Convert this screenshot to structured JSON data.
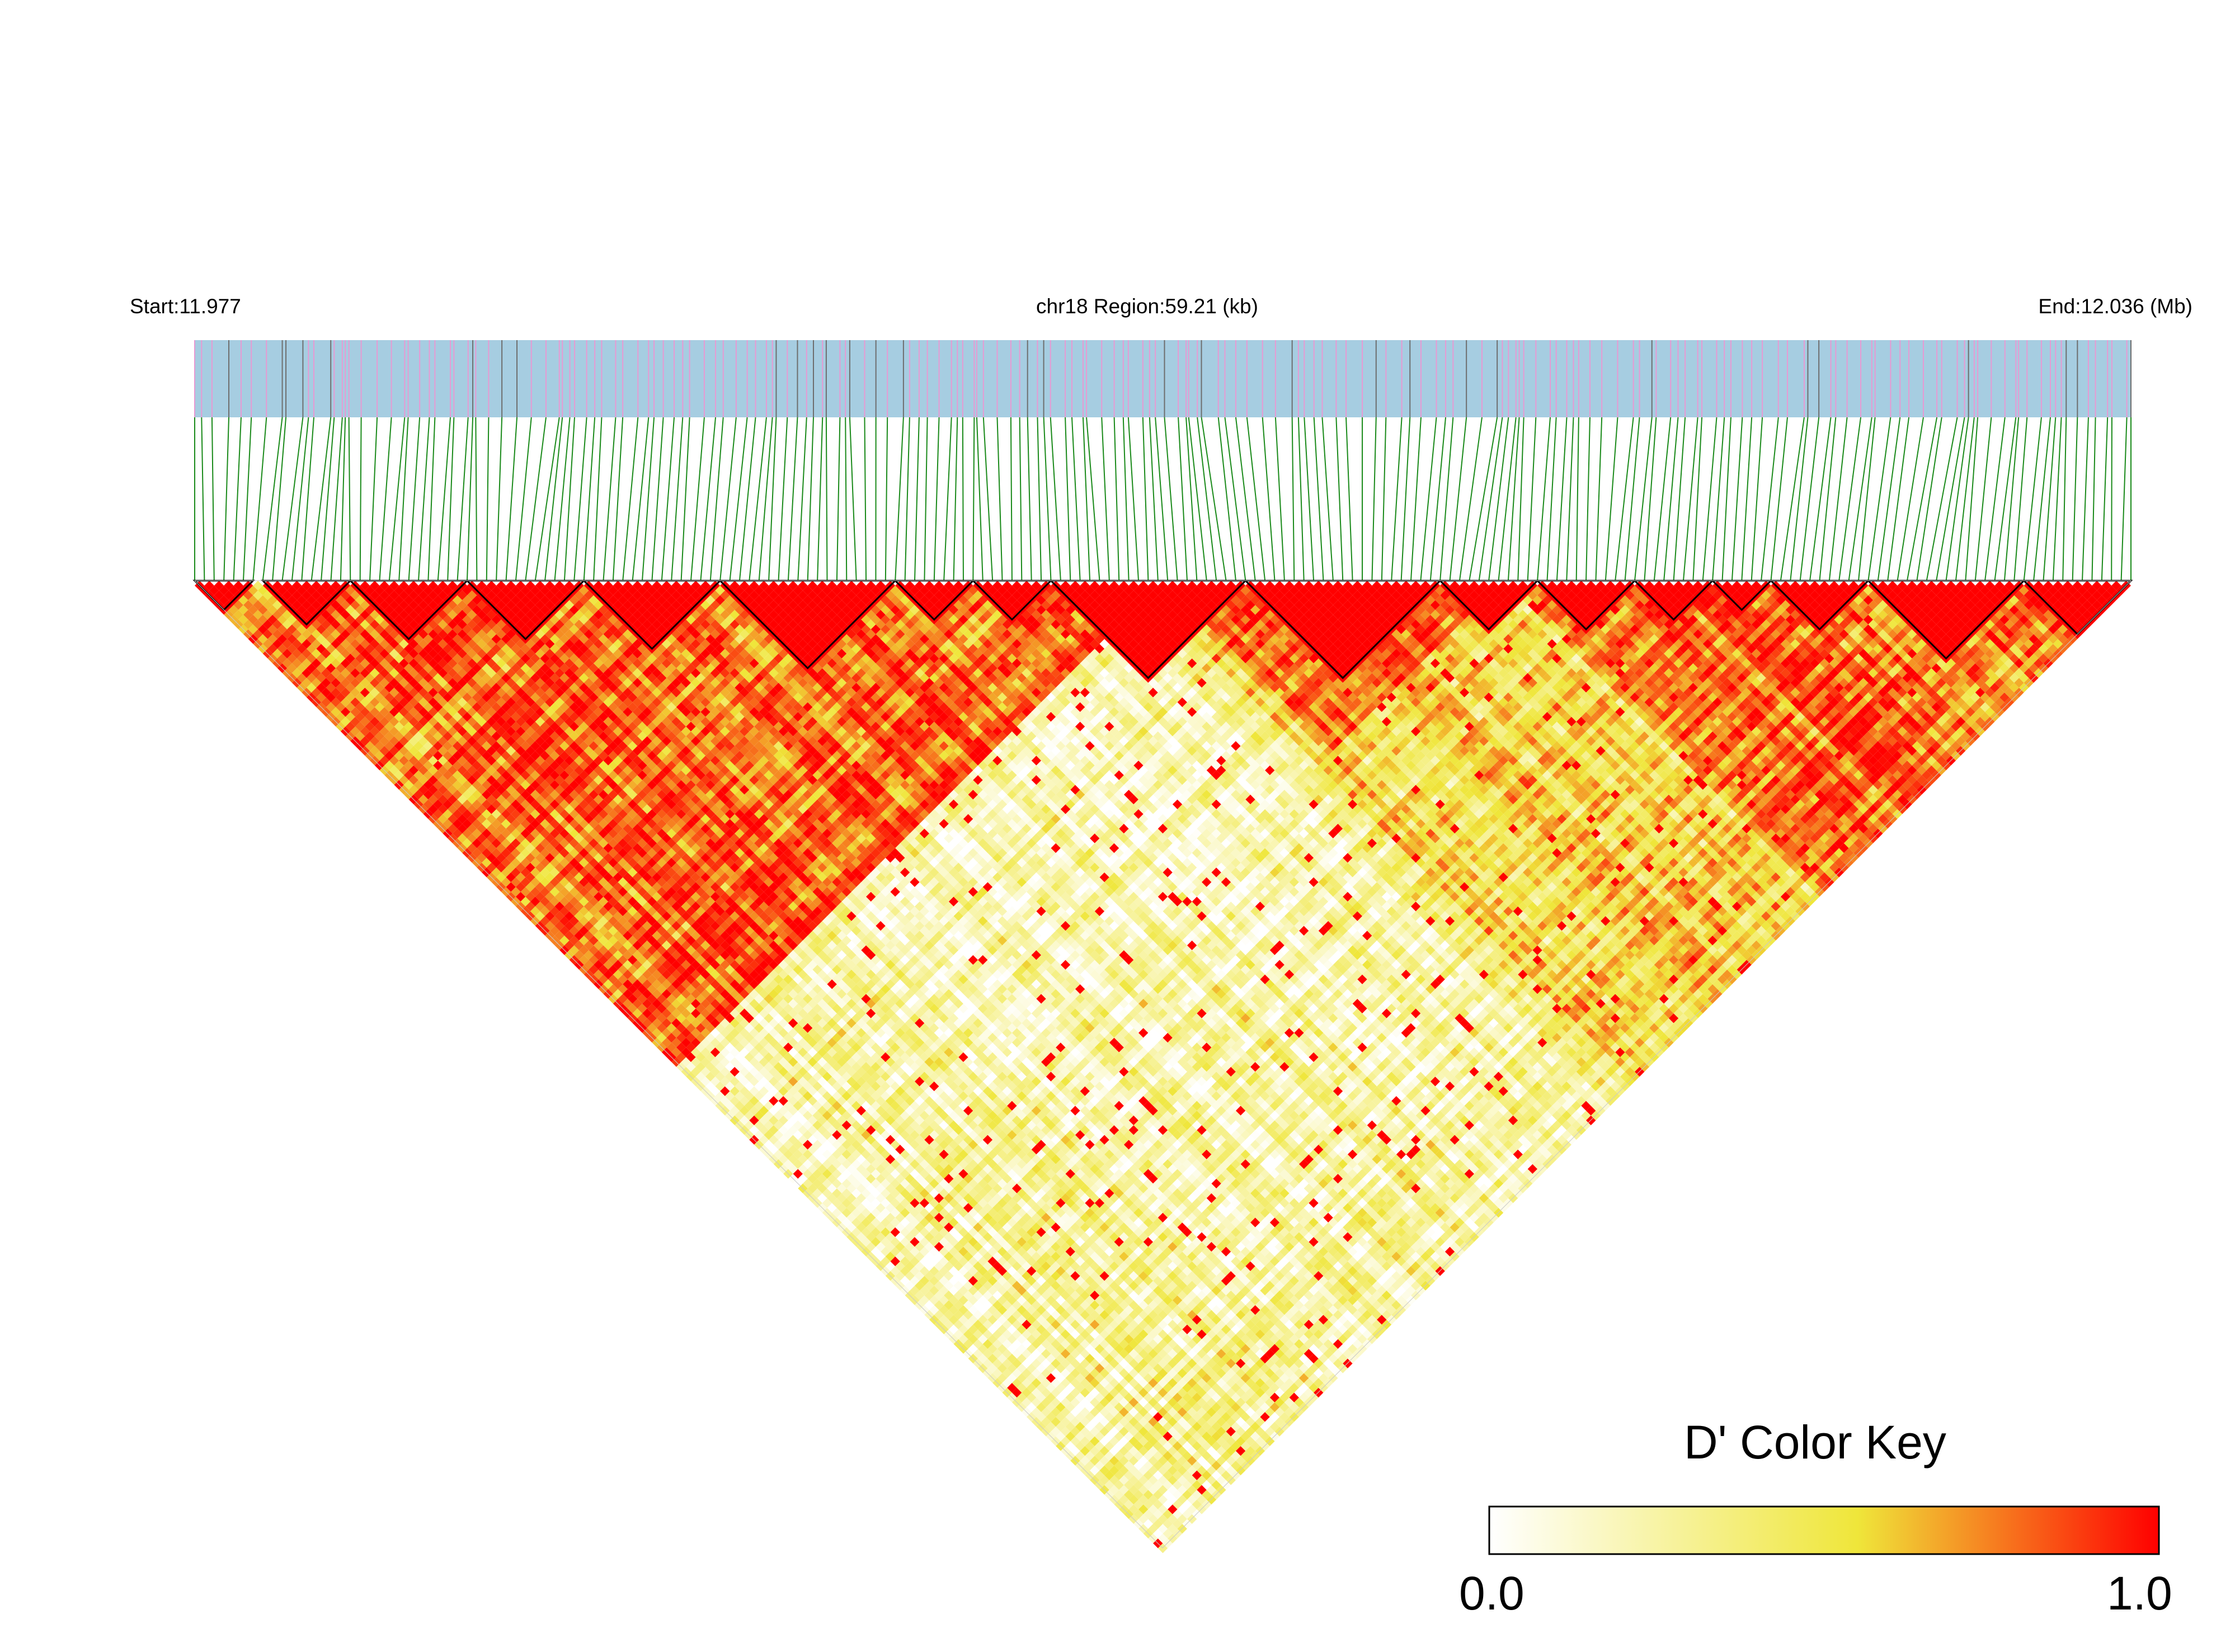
{
  "header": {
    "start_label": "Start:11.977",
    "region_label": "chr18 Region:59.21 (kb)",
    "end_label": "End:12.036 (Mb)"
  },
  "colors": {
    "track_bg": "#a6cde1",
    "snp_line_pink": "#e79ad3",
    "snp_line_gray": "#6e6e6e",
    "connector": "#1a8a1a",
    "high_ld": "#ff0000",
    "mid_ld": "#efe63a",
    "low_ld": "#ffffff",
    "block_outline": "#000000"
  },
  "color_key": {
    "title": "D' Color Key",
    "min_label": "0.0",
    "max_label": "1.0"
  },
  "chart_data": {
    "type": "heatmap",
    "subtype": "LD triangle (linkage disequilibrium)",
    "chromosome": "chr18",
    "start_mb": 11.977,
    "end_mb": 12.036,
    "region_kb": 59.21,
    "metric": "D'",
    "color_scale": {
      "min": 0.0,
      "max": 1.0,
      "stops": [
        "#ffffff",
        "#efe63a",
        "#ff0000"
      ]
    },
    "snp_count_approx": 200,
    "ld_blocks_snp_index_ranges": [
      [
        0,
        6
      ],
      [
        7,
        16
      ],
      [
        16,
        28
      ],
      [
        28,
        40
      ],
      [
        40,
        54
      ],
      [
        54,
        72
      ],
      [
        72,
        80
      ],
      [
        80,
        88
      ],
      [
        88,
        108
      ],
      [
        108,
        128
      ],
      [
        128,
        138
      ],
      [
        138,
        148
      ],
      [
        148,
        156
      ],
      [
        156,
        162
      ],
      [
        162,
        172
      ],
      [
        172,
        188
      ],
      [
        188,
        199
      ]
    ],
    "regional_mean_dprime": [
      {
        "from_snp": 0,
        "to_snp": 100,
        "mean": 0.8
      },
      {
        "from_snp": 100,
        "to_snp": 135,
        "mean": 0.9
      },
      {
        "from_snp": 135,
        "to_snp": 199,
        "mean": 0.75
      },
      {
        "between": "left-region vs right-region",
        "mean": 0.25
      }
    ]
  }
}
